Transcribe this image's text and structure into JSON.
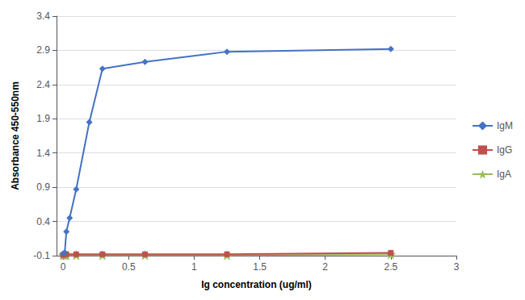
{
  "chart_data": {
    "type": "line",
    "xlabel": "Ig concentration (ug/ml)",
    "ylabel": "Absorbance 450-550nm",
    "xlim": [
      -0.05,
      3.0
    ],
    "ylim": [
      -0.1,
      3.4
    ],
    "xticks": [
      0,
      0.5,
      1,
      1.5,
      2,
      2.5,
      3
    ],
    "yticks": [
      -0.1,
      0.4,
      0.9,
      1.4,
      1.9,
      2.4,
      2.9,
      3.4
    ],
    "grid": true,
    "legend": "right",
    "series": [
      {
        "name": "IgA",
        "color": "#9BBB59",
        "marker": "star",
        "x": [
          0.0,
          0.012,
          0.025,
          0.1,
          0.3,
          0.625,
          1.25,
          2.5
        ],
        "values": [
          -0.09,
          -0.09,
          -0.09,
          -0.09,
          -0.09,
          -0.09,
          -0.09,
          -0.08
        ]
      },
      {
        "name": "IgG",
        "color": "#C0504D",
        "marker": "square",
        "x": [
          0.0,
          0.012,
          0.025,
          0.1,
          0.3,
          0.625,
          1.25,
          2.5
        ],
        "values": [
          -0.09,
          -0.08,
          -0.08,
          -0.08,
          -0.08,
          -0.08,
          -0.08,
          -0.06
        ]
      },
      {
        "name": "IgM",
        "color": "#4472C4",
        "marker": "diamond",
        "x": [
          0.0,
          0.012,
          0.025,
          0.05,
          0.1,
          0.2,
          0.3,
          0.625,
          1.25,
          2.5
        ],
        "values": [
          -0.07,
          -0.06,
          0.25,
          0.45,
          0.87,
          1.85,
          2.63,
          2.73,
          2.88,
          2.92
        ]
      }
    ]
  }
}
